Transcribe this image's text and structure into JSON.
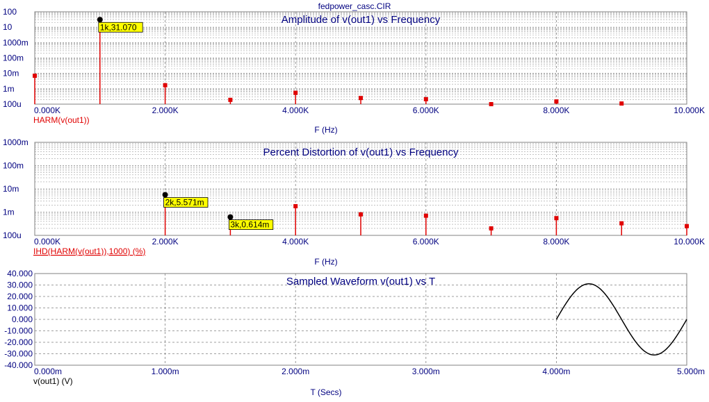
{
  "window_title": "fedpower_casc.CIR",
  "colors": {
    "axis_text": "#000080",
    "trace_red": "#e00000",
    "grid": "#808080",
    "frame": "#808080",
    "marker_fill": "#ffff00",
    "waveform": "#000000"
  },
  "chart_data": [
    {
      "id": "amplitude",
      "type": "bar",
      "title": "Amplitude of v(out1) vs Frequency",
      "xlabel": "F (Hz)",
      "ylabel": "HARM(v(out1))",
      "y_scale": "log",
      "xlim": [
        0,
        10000
      ],
      "ylim": [
        0.0001,
        100
      ],
      "x_ticks": [
        "0.000K",
        "2.000K",
        "4.000K",
        "6.000K",
        "8.000K",
        "10.000K"
      ],
      "y_ticks": [
        "100",
        "10",
        "1000m",
        "100m",
        "10m",
        "1m",
        "100u"
      ],
      "grid": true,
      "points": [
        {
          "x": 0,
          "y": 0.007
        },
        {
          "x": 1000,
          "y": 31.07
        },
        {
          "x": 2000,
          "y": 0.0017
        },
        {
          "x": 3000,
          "y": 0.00019
        },
        {
          "x": 4000,
          "y": 0.00055
        },
        {
          "x": 5000,
          "y": 0.00025
        },
        {
          "x": 6000,
          "y": 0.00021
        },
        {
          "x": 7000,
          "y": 0.0001
        },
        {
          "x": 8000,
          "y": 0.00015
        },
        {
          "x": 9000,
          "y": 0.00011
        }
      ],
      "markers": [
        {
          "x": 1000,
          "y": 31.07,
          "label": "1k,31.070"
        }
      ]
    },
    {
      "id": "distortion",
      "type": "bar",
      "title": "Percent Distortion of v(out1) vs Frequency",
      "xlabel": "F (Hz)",
      "ylabel": "IHD(HARM(v(out1)),1000) (%)",
      "y_scale": "log",
      "xlim": [
        0,
        10000
      ],
      "ylim": [
        0.0001,
        1
      ],
      "x_ticks": [
        "0.000K",
        "2.000K",
        "4.000K",
        "6.000K",
        "8.000K",
        "10.000K"
      ],
      "y_ticks": [
        "1000m",
        "100m",
        "10m",
        "1m",
        "100u"
      ],
      "grid": true,
      "points": [
        {
          "x": 2000,
          "y": 0.005571
        },
        {
          "x": 3000,
          "y": 0.000614
        },
        {
          "x": 4000,
          "y": 0.0018
        },
        {
          "x": 5000,
          "y": 0.0008
        },
        {
          "x": 6000,
          "y": 0.0007
        },
        {
          "x": 7000,
          "y": 0.0002
        },
        {
          "x": 8000,
          "y": 0.00055
        },
        {
          "x": 9000,
          "y": 0.00033
        },
        {
          "x": 10000,
          "y": 0.00025
        }
      ],
      "markers": [
        {
          "x": 2000,
          "y": 0.005571,
          "label": "2k,5.571m"
        },
        {
          "x": 3000,
          "y": 0.000614,
          "label": "3k,0.614m"
        }
      ]
    },
    {
      "id": "waveform",
      "type": "line",
      "title": "Sampled Waveform  v(out1) vs T",
      "xlabel": "T (Secs)",
      "ylabel": "v(out1) (V)",
      "y_scale": "linear",
      "xlim": [
        0,
        0.005
      ],
      "ylim": [
        -40,
        40
      ],
      "x_ticks": [
        "0.000m",
        "1.000m",
        "2.000m",
        "3.000m",
        "4.000m",
        "5.000m"
      ],
      "y_ticks": [
        "40.000",
        "30.000",
        "20.000",
        "10.000",
        "0.000",
        "-10.000",
        "-20.000",
        "-30.000",
        "-40.000"
      ],
      "grid": true,
      "series": [
        {
          "amplitude": 31.07,
          "frequency_hz": 1000,
          "t_start": 0.004,
          "t_end": 0.005
        }
      ]
    }
  ]
}
